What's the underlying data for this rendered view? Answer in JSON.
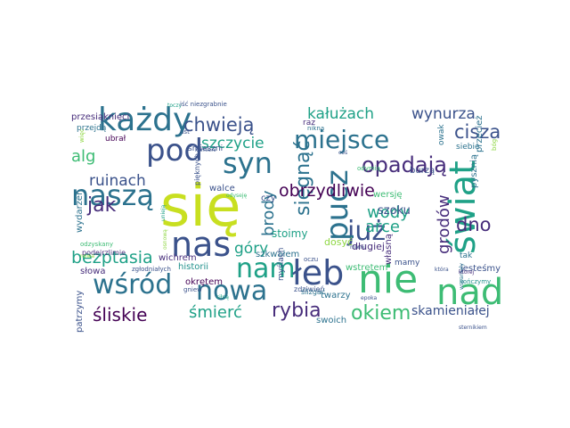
{
  "palette": {
    "yellow": "#c8df20",
    "lime": "#8fd744",
    "green": "#3dbc74",
    "teal": "#1fa187",
    "cyan": "#21918c",
    "blue": "#2c728e",
    "indigo": "#3b528b",
    "purple": "#472d7b",
    "violet": "#440154"
  },
  "words": [
    {
      "text": "się",
      "color": "yellow",
      "vertical": false
    },
    {
      "text": "każdy",
      "color": "blue",
      "vertical": false
    },
    {
      "text": "pod",
      "color": "indigo",
      "vertical": false
    },
    {
      "text": "syn",
      "color": "blue",
      "vertical": false
    },
    {
      "text": "naszą",
      "color": "blue",
      "vertical": false
    },
    {
      "text": "nas",
      "color": "indigo",
      "vertical": false
    },
    {
      "text": "nam",
      "color": "teal",
      "vertical": false
    },
    {
      "text": "wśród",
      "color": "blue",
      "vertical": false
    },
    {
      "text": "nowa",
      "color": "blue",
      "vertical": false
    },
    {
      "text": "nie",
      "color": "green",
      "vertical": false
    },
    {
      "text": "nad",
      "color": "green",
      "vertical": false
    },
    {
      "text": "łeb",
      "color": "indigo",
      "vertical": false
    },
    {
      "text": "już",
      "color": "indigo",
      "vertical": false
    },
    {
      "text": "miejsce",
      "color": "blue",
      "vertical": false
    },
    {
      "text": "świat",
      "color": "teal",
      "vertical": true
    },
    {
      "text": "pucz",
      "color": "blue",
      "vertical": true
    },
    {
      "text": "sięgnąć",
      "color": "blue",
      "vertical": true
    },
    {
      "text": "opadają",
      "color": "purple",
      "vertical": false
    },
    {
      "text": "chwieją",
      "color": "indigo",
      "vertical": false
    },
    {
      "text": "jak",
      "color": "purple",
      "vertical": false
    },
    {
      "text": "ruinach",
      "color": "indigo",
      "vertical": false
    },
    {
      "text": "alg",
      "color": "green",
      "vertical": false
    },
    {
      "text": "szczycie",
      "color": "teal",
      "vertical": false
    },
    {
      "text": "kałużach",
      "color": "teal",
      "vertical": false
    },
    {
      "text": "wynurza",
      "color": "indigo",
      "vertical": false
    },
    {
      "text": "cisza",
      "color": "indigo",
      "vertical": false
    },
    {
      "text": "obrzydliwie",
      "color": "violet",
      "vertical": false
    },
    {
      "text": "dno",
      "color": "purple",
      "vertical": false
    },
    {
      "text": "grodów",
      "color": "purple",
      "vertical": true
    },
    {
      "text": "wody",
      "color": "teal",
      "vertical": false
    },
    {
      "text": "arce",
      "color": "teal",
      "vertical": false
    },
    {
      "text": "szoku",
      "color": "indigo",
      "vertical": false
    },
    {
      "text": "brody",
      "color": "blue",
      "vertical": true
    },
    {
      "text": "góry",
      "color": "teal",
      "vertical": false
    },
    {
      "text": "bezptasia",
      "color": "teal",
      "vertical": false
    },
    {
      "text": "rybia",
      "color": "purple",
      "vertical": false
    },
    {
      "text": "okiem",
      "color": "green",
      "vertical": false
    },
    {
      "text": "skamieniałej",
      "color": "indigo",
      "vertical": false
    },
    {
      "text": "śliskie",
      "color": "violet",
      "vertical": false
    },
    {
      "text": "śmierć",
      "color": "teal",
      "vertical": false
    },
    {
      "text": "stoimy",
      "color": "teal",
      "vertical": false
    },
    {
      "text": "dosyć",
      "color": "lime",
      "vertical": false
    },
    {
      "text": "długiej",
      "color": "purple",
      "vertical": false
    },
    {
      "text": "szkwałem",
      "color": "blue",
      "vertical": false
    },
    {
      "text": "słowa",
      "color": "purple",
      "vertical": false
    },
    {
      "text": "okrętem",
      "color": "violet",
      "vertical": false
    },
    {
      "text": "historii",
      "color": "cyan",
      "vertical": false
    },
    {
      "text": "wstrętem",
      "color": "green",
      "vertical": false
    },
    {
      "text": "jesteśmy",
      "color": "indigo",
      "vertical": false
    },
    {
      "text": "twarzy",
      "color": "blue",
      "vertical": false
    },
    {
      "text": "swoich",
      "color": "blue",
      "vertical": false
    },
    {
      "text": "przesiąknięci",
      "color": "purple",
      "vertical": false
    },
    {
      "text": "przejdą",
      "color": "blue",
      "vertical": false
    },
    {
      "text": "ubrał",
      "color": "violet",
      "vertical": false
    },
    {
      "text": "śmieszni",
      "color": "indigo",
      "vertical": false
    },
    {
      "text": "walce",
      "color": "indigo",
      "vertical": false
    },
    {
      "text": "wichrem",
      "color": "purple",
      "vertical": false
    },
    {
      "text": "czy",
      "color": "indigo",
      "vertical": false
    },
    {
      "text": "wersję",
      "color": "green",
      "vertical": false
    },
    {
      "text": "burzą",
      "color": "indigo",
      "vertical": false
    },
    {
      "text": "tak",
      "color": "blue",
      "vertical": false
    },
    {
      "text": "mamy",
      "color": "indigo",
      "vertical": false
    },
    {
      "text": "własną",
      "color": "purple",
      "vertical": true
    },
    {
      "text": "pysznią",
      "color": "blue",
      "vertical": true
    },
    {
      "text": "patrzymy",
      "color": "indigo",
      "vertical": true
    },
    {
      "text": "myślach",
      "color": "indigo",
      "vertical": true
    },
    {
      "text": "wydarzeń",
      "color": "blue",
      "vertical": true
    },
    {
      "text": "owak",
      "color": "blue",
      "vertical": true
    },
    {
      "text": "siebie",
      "color": "blue",
      "vertical": false
    },
    {
      "text": "przecież",
      "color": "blue",
      "vertical": true
    },
    {
      "text": "raz",
      "color": "purple",
      "vertical": false
    },
    {
      "text": "zdziwień",
      "color": "indigo",
      "vertical": false
    },
    {
      "text": "gniew",
      "color": "indigo",
      "vertical": false
    },
    {
      "text": "oczu",
      "color": "indigo",
      "vertical": false
    },
    {
      "text": "ślizgać",
      "color": "blue",
      "vertical": false
    },
    {
      "text": "odzyskany",
      "color": "green",
      "vertical": false
    },
    {
      "text": "pięknych",
      "color": "indigo",
      "vertical": true
    },
    {
      "text": "zgłodniałych",
      "color": "indigo",
      "vertical": false
    },
    {
      "text": "podejrzlimie",
      "color": "purple",
      "vertical": false
    },
    {
      "text": "epoka",
      "color": "indigo",
      "vertical": false
    },
    {
      "text": "kończymy",
      "color": "cyan",
      "vertical": false
    },
    {
      "text": "ust",
      "color": "indigo",
      "vertical": false
    },
    {
      "text": "toczy",
      "color": "teal",
      "vertical": false
    },
    {
      "text": "iść niezgrabnie",
      "color": "indigo",
      "vertical": false
    },
    {
      "text": "kamieni",
      "color": "indigo",
      "vertical": false
    },
    {
      "text": "więc",
      "color": "lime",
      "vertical": true
    },
    {
      "text": "bóg",
      "color": "lime",
      "vertical": true
    },
    {
      "text": "nikną",
      "color": "blue",
      "vertical": false
    },
    {
      "text": "coś",
      "color": "indigo",
      "vertical": false
    },
    {
      "text": "odyseję",
      "color": "green",
      "vertical": false
    },
    {
      "text": "odymią",
      "color": "green",
      "vertical": false
    },
    {
      "text": "która",
      "color": "indigo",
      "vertical": false
    },
    {
      "text": "wspaniały",
      "color": "blue",
      "vertical": true
    },
    {
      "text": "mieni",
      "color": "indigo",
      "vertical": false
    },
    {
      "text": "siłną",
      "color": "teal",
      "vertical": false
    },
    {
      "text": "unieją",
      "color": "teal",
      "vertical": true
    },
    {
      "text": "osnową",
      "color": "lime",
      "vertical": true
    },
    {
      "text": "nowa",
      "color": "lime",
      "vertical": false
    },
    {
      "text": "której",
      "color": "purple",
      "vertical": false
    },
    {
      "text": "sternikiem",
      "color": "indigo",
      "vertical": false
    }
  ]
}
